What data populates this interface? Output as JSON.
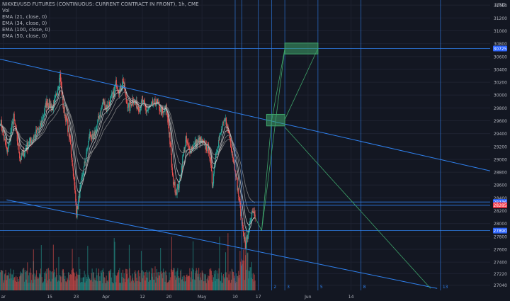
{
  "header": {
    "title": "NIKKEI/USD FUTURES (CONTINUOUS: CURRENT CONTRACT IN FRONT), 1h, CME",
    "indicators": [
      "Vol",
      "EMA (21, close, 0)",
      "EMA (34, close, 0)",
      "EMA (100, close, 0)",
      "EMA (50, close, 0)"
    ],
    "currency": "USD"
  },
  "colors": {
    "background": "#131722",
    "grid": "#1e2230",
    "axis_text": "#b2b5be",
    "up": "#26a69a",
    "down": "#ef5350",
    "trendline": "#2f80ed",
    "projection": "#3ea36a",
    "label_blue": "#2962ff",
    "label_red": "#f23645",
    "ema_fast": "#c9c9c9",
    "ema_slow": "#8a8a8a"
  },
  "chart_data": {
    "type": "candlestick",
    "symbol": "NIKKEI/USD",
    "timeframe": "1h",
    "exchange": "CME",
    "y_axis": {
      "ticks": [
        27040,
        27220,
        27400,
        27600,
        27800,
        28000,
        28200,
        28400,
        28600,
        28800,
        29000,
        29200,
        29400,
        29600,
        29800,
        30000,
        30200,
        30400,
        30600,
        30800,
        31000,
        31200,
        31400
      ],
      "range": [
        26960,
        31480
      ]
    },
    "x_axis": {
      "ticks": [
        {
          "label": "ar",
          "x": 1
        },
        {
          "label": "15",
          "x": 15
        },
        {
          "label": "23",
          "x": 23
        },
        {
          "label": "Apr",
          "x": 32
        },
        {
          "label": "12",
          "x": 43
        },
        {
          "label": "20",
          "x": 51
        },
        {
          "label": "May",
          "x": 61
        },
        {
          "label": "10",
          "x": 71
        },
        {
          "label": "17",
          "x": 78
        },
        {
          "label": "Jun",
          "x": 93
        },
        {
          "label": "14",
          "x": 106
        }
      ],
      "range": [
        0,
        148
      ]
    },
    "future_markers": [
      {
        "label": "2",
        "x": 82
      },
      {
        "label": "3",
        "x": 86
      },
      {
        "label": "5",
        "x": 96
      },
      {
        "label": "8",
        "x": 109
      },
      {
        "label": "13",
        "x": 133
      }
    ],
    "price_path": [
      [
        0,
        29600
      ],
      [
        2,
        29100
      ],
      [
        4,
        29650
      ],
      [
        6,
        29000
      ],
      [
        8,
        29200
      ],
      [
        10,
        29350
      ],
      [
        12,
        29500
      ],
      [
        14,
        29900
      ],
      [
        16,
        29800
      ],
      [
        18,
        30300
      ],
      [
        19,
        29800
      ],
      [
        20,
        29600
      ],
      [
        21,
        29300
      ],
      [
        22,
        28800
      ],
      [
        23,
        28150
      ],
      [
        24,
        28500
      ],
      [
        25,
        28800
      ],
      [
        26,
        29100
      ],
      [
        27,
        29400
      ],
      [
        28,
        29300
      ],
      [
        29,
        29500
      ],
      [
        30,
        29700
      ],
      [
        31,
        29900
      ],
      [
        32,
        29800
      ],
      [
        33,
        29900
      ],
      [
        34,
        30000
      ],
      [
        35,
        30200
      ],
      [
        36,
        30050
      ],
      [
        37,
        30250
      ],
      [
        38,
        29900
      ],
      [
        39,
        29800
      ],
      [
        40,
        29950
      ],
      [
        41,
        29850
      ],
      [
        42,
        29800
      ],
      [
        43,
        29900
      ],
      [
        44,
        29750
      ],
      [
        45,
        29800
      ],
      [
        46,
        29850
      ],
      [
        47,
        29900
      ],
      [
        48,
        29800
      ],
      [
        49,
        29700
      ],
      [
        50,
        29800
      ],
      [
        51,
        29400
      ],
      [
        52,
        28700
      ],
      [
        53,
        28500
      ],
      [
        54,
        28600
      ],
      [
        55,
        29000
      ],
      [
        56,
        29300
      ],
      [
        57,
        29150
      ],
      [
        58,
        29200
      ],
      [
        59,
        29250
      ],
      [
        60,
        29300
      ],
      [
        61,
        29250
      ],
      [
        62,
        29200
      ],
      [
        63,
        29150
      ],
      [
        64,
        28600
      ],
      [
        65,
        29100
      ],
      [
        66,
        29300
      ],
      [
        67,
        29500
      ],
      [
        68,
        29600
      ],
      [
        69,
        29400
      ],
      [
        70,
        29100
      ],
      [
        71,
        28800
      ],
      [
        72,
        28400
      ],
      [
        73,
        28000
      ],
      [
        74,
        27650
      ],
      [
        75,
        27900
      ],
      [
        76,
        28150
      ],
      [
        77,
        28100
      ]
    ],
    "ema_lines": [
      {
        "name": "EMA (21, close, 0)",
        "lag": 2
      },
      {
        "name": "EMA (34, close, 0)",
        "lag": 3
      },
      {
        "name": "EMA (50, close, 0)",
        "lag": 5
      },
      {
        "name": "EMA (100, close, 0)",
        "lag": 8
      }
    ],
    "trendlines": [
      {
        "from": [
          0,
          30560
        ],
        "to": [
          148,
          28820
        ]
      },
      {
        "from": [
          2,
          28370
        ],
        "to": [
          132,
          26990
        ]
      }
    ],
    "horizontal_levels": [
      {
        "price": 30725,
        "label": "30725",
        "color": "blue"
      },
      {
        "price": 28336,
        "label": "28336",
        "color": "blue"
      },
      {
        "price": 28285,
        "label": "28285",
        "color": "red"
      },
      {
        "price": 27890,
        "label": "27890",
        "color": "blue"
      }
    ],
    "vertical_lines": [
      71,
      73,
      78,
      82,
      86,
      96,
      109,
      133
    ],
    "projection_boxes": [
      {
        "x": [
          80.5,
          86
        ],
        "y": [
          29520,
          29700
        ]
      },
      {
        "x": [
          86,
          96
        ],
        "y": [
          30640,
          30810
        ]
      }
    ],
    "projection_lines": [
      {
        "from": [
          77,
          28100
        ],
        "to": [
          79,
          27890
        ]
      },
      {
        "from": [
          79,
          27890
        ],
        "to": [
          82,
          29600
        ]
      },
      {
        "from": [
          79,
          27890
        ],
        "to": [
          86,
          30725
        ]
      },
      {
        "from": [
          82,
          29600
        ],
        "to": [
          86,
          30725
        ]
      },
      {
        "from": [
          86,
          29620
        ],
        "to": [
          96,
          30725
        ]
      },
      {
        "from": [
          86,
          29500
        ],
        "to": [
          130,
          26990
        ]
      }
    ],
    "grid": true
  }
}
